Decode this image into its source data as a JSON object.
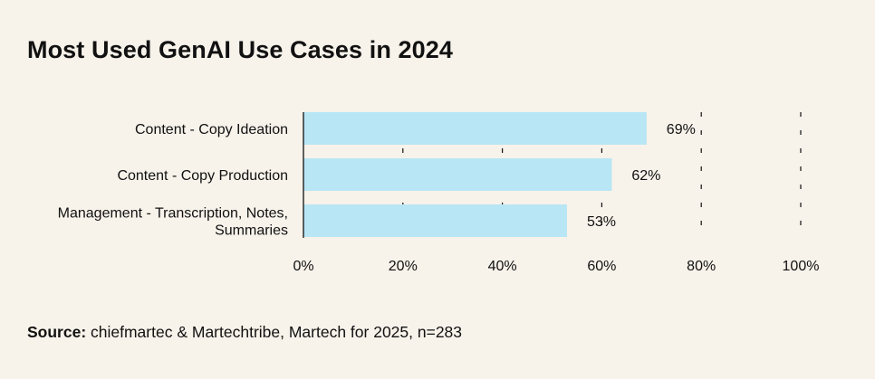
{
  "title": "Most Used GenAI Use Cases in 2024",
  "source": {
    "label": "Source:",
    "text": " chiefmartec & Martechtribe, Martech for 2025, n=283"
  },
  "colors": {
    "background": "#f7f2ea",
    "bar": "#b8e6f5",
    "text": "#111111"
  },
  "chart_data": {
    "type": "bar",
    "orientation": "horizontal",
    "categories": [
      [
        "Content - Copy Ideation"
      ],
      [
        "Content - Copy Production"
      ],
      [
        "Management - Transcription, Notes,",
        "Summaries"
      ]
    ],
    "values": [
      69,
      62,
      53
    ],
    "value_labels": [
      "69%",
      "62%",
      "53%"
    ],
    "xlim": [
      0,
      100
    ],
    "xticks": [
      0,
      20,
      40,
      60,
      80,
      100
    ],
    "xtick_labels": [
      "0%",
      "20%",
      "40%",
      "60%",
      "80%",
      "100%"
    ],
    "grid": "dashed vertical"
  }
}
